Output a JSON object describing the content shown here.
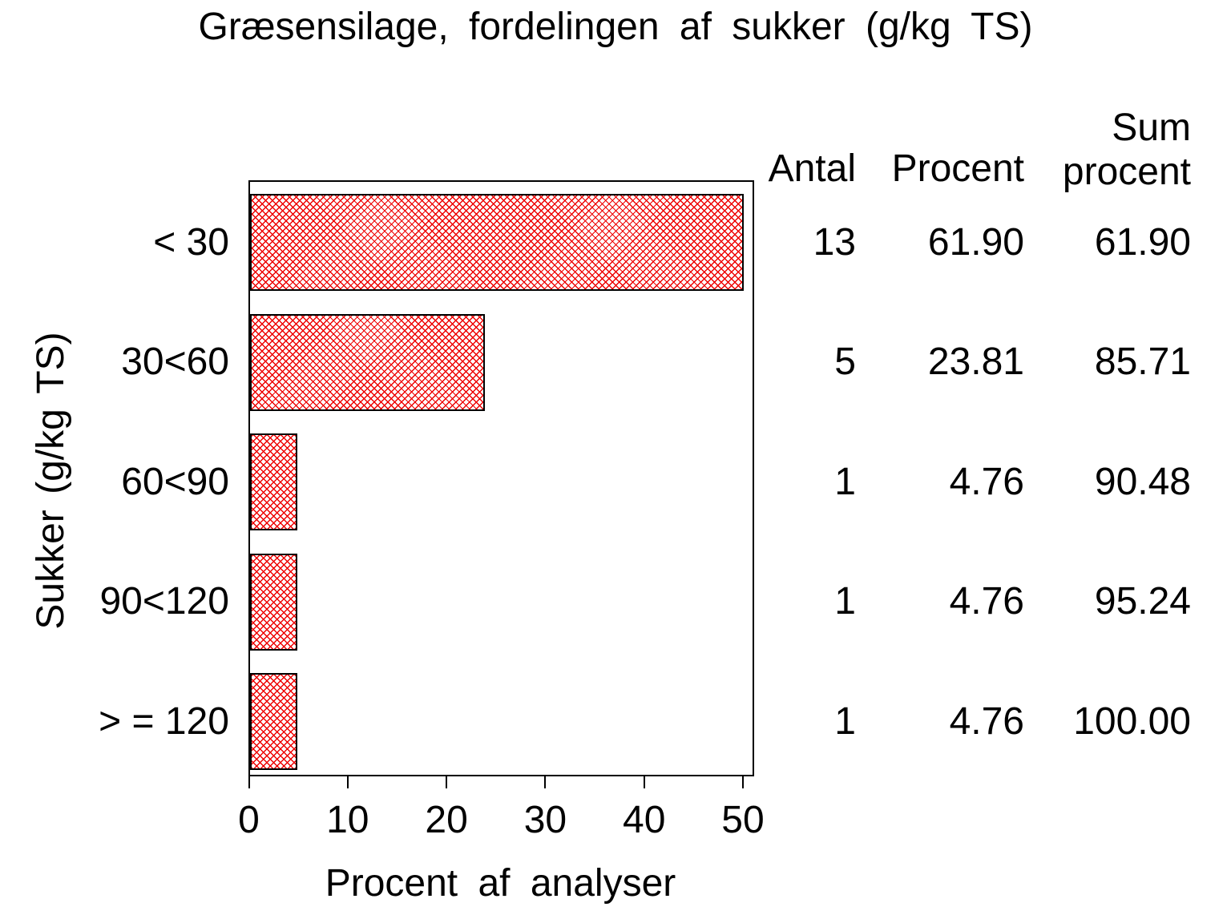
{
  "title": "Græsensilage, fordelingen af sukker (g/kg TS)",
  "y_axis_label": "Sukker (g/kg TS)",
  "x_axis_label": "Procent af analyser",
  "table_headers": {
    "antal": "Antal",
    "procent": "Procent",
    "sum_line1": "Sum",
    "sum_line2": "procent"
  },
  "colors": {
    "bar_hatch_red": "#ee0000",
    "bar_border": "#000000",
    "text": "#000000",
    "background": "#ffffff"
  },
  "chart_data": {
    "type": "bar",
    "orientation": "horizontal",
    "title": "Græsensilage, fordelingen af sukker (g/kg TS)",
    "xlabel": "Procent af analyser",
    "ylabel": "Sukker (g/kg TS)",
    "xlim": [
      0,
      50
    ],
    "x_ticks": [
      "0",
      "10",
      "20",
      "30",
      "40",
      "50"
    ],
    "grid": false,
    "bar_fill": "red crosshatch pattern, black outline, bars clipped at axis max 50",
    "categories": [
      "< 30",
      "30<60",
      "60<90",
      "90<120",
      "> = 120"
    ],
    "series": [
      {
        "name": "Antal",
        "values": [
          13,
          5,
          1,
          1,
          1
        ]
      },
      {
        "name": "Procent",
        "values": [
          61.9,
          23.81,
          4.76,
          4.76,
          4.76
        ]
      },
      {
        "name": "Sum procent",
        "values": [
          61.9,
          85.71,
          90.48,
          95.24,
          100.0
        ]
      }
    ],
    "bar_length_series": "Procent"
  },
  "table_rows": [
    {
      "label": "< 30",
      "antal": "13",
      "procent": "61.90",
      "sum_procent": "61.90"
    },
    {
      "label": "30<60",
      "antal": "5",
      "procent": "23.81",
      "sum_procent": "85.71"
    },
    {
      "label": "60<90",
      "antal": "1",
      "procent": "4.76",
      "sum_procent": "90.48"
    },
    {
      "label": "90<120",
      "antal": "1",
      "procent": "4.76",
      "sum_procent": "95.24"
    },
    {
      "label": "> = 120",
      "antal": "1",
      "procent": "4.76",
      "sum_procent": "100.00"
    }
  ]
}
